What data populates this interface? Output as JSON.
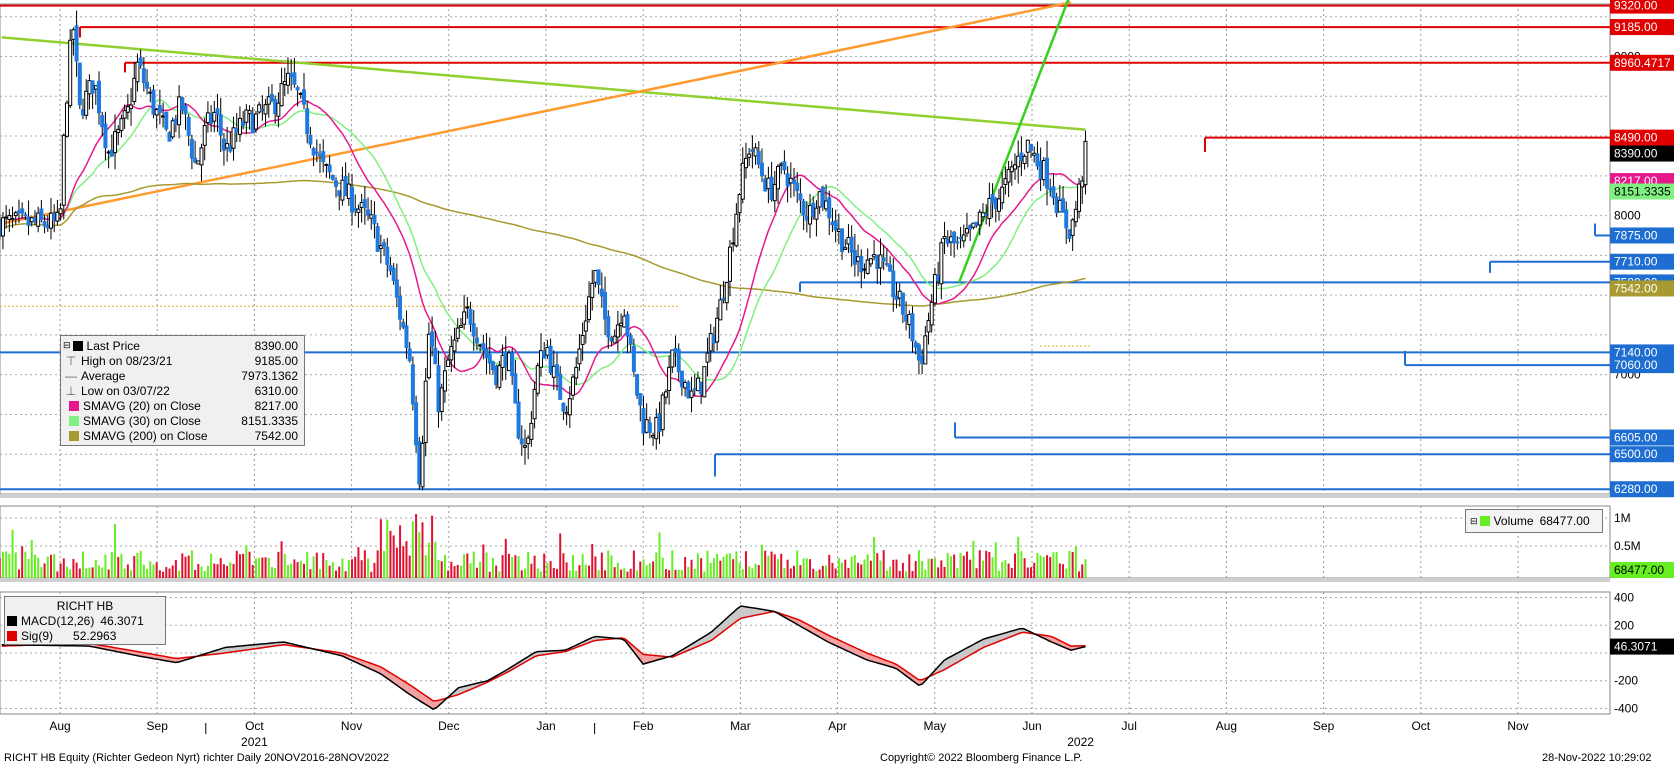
{
  "chart_data": [
    {
      "type": "candlestick",
      "panel": "price",
      "x_months": [
        "Aug",
        "Sep",
        "Oct",
        "Nov",
        "Dec",
        "Jan",
        "Feb",
        "Mar",
        "Apr",
        "May",
        "Jun",
        "Jul",
        "Aug",
        "Sep",
        "Oct",
        "Nov"
      ],
      "x_years": [
        "2021",
        "2022"
      ],
      "y_ticks": [
        7000,
        8000,
        9000
      ],
      "ylim": [
        6250,
        9330
      ],
      "right_labels": [
        {
          "value": 9320.0,
          "text": "9320.00",
          "color": "#e00000"
        },
        {
          "value": 9185.0,
          "text": "9185.00",
          "color": "#e00000"
        },
        {
          "value": 8960.4717,
          "text": "8960.4717",
          "color": "#e00000"
        },
        {
          "value": 8490.0,
          "text": "8490.00",
          "color": "#e00000"
        },
        {
          "value": 8390.0,
          "text": "8390.00",
          "color": "#000000"
        },
        {
          "value": 8217.0,
          "text": "8217.00",
          "color": "#e6198c"
        },
        {
          "value": 8151.3335,
          "text": "8151.3335",
          "color": "#80f080"
        },
        {
          "value": 7875.0,
          "text": "7875.00",
          "color": "#1e6ed2"
        },
        {
          "value": 7710.0,
          "text": "7710.00",
          "color": "#1e6ed2"
        },
        {
          "value": 7580.0,
          "text": "7580.00",
          "color": "#1e6ed2"
        },
        {
          "value": 7542.0,
          "text": "7542.00",
          "color": "#a89a30"
        },
        {
          "value": 7140.0,
          "text": "7140.00",
          "color": "#1e6ed2"
        },
        {
          "value": 7060.0,
          "text": "7060.00",
          "color": "#1e6ed2"
        },
        {
          "value": 6605.0,
          "text": "6605.00",
          "color": "#1e6ed2"
        },
        {
          "value": 6500.0,
          "text": "6500.00",
          "color": "#1e6ed2"
        },
        {
          "value": 6280.0,
          "text": "6280.00",
          "color": "#1e6ed2"
        }
      ],
      "price_path": [
        [
          0,
          7950
        ],
        [
          0.05,
          8600
        ],
        [
          0.1,
          9000
        ],
        [
          0.14,
          9185
        ],
        [
          0.2,
          8650
        ],
        [
          0.35,
          8850
        ],
        [
          0.5,
          8400
        ],
        [
          0.6,
          8500
        ],
        [
          0.7,
          8650
        ],
        [
          0.8,
          8950
        ],
        [
          0.95,
          8700
        ],
        [
          1.1,
          8500
        ],
        [
          1.25,
          8700
        ],
        [
          1.4,
          8300
        ],
        [
          1.5,
          8550
        ],
        [
          1.6,
          8650
        ],
        [
          1.7,
          8400
        ],
        [
          1.8,
          8500
        ],
        [
          1.9,
          8600
        ],
        [
          2.0,
          8600
        ],
        [
          2.2,
          8700
        ],
        [
          2.35,
          8850
        ],
        [
          2.45,
          8750
        ],
        [
          2.55,
          8550
        ],
        [
          2.7,
          8300
        ],
        [
          2.85,
          8200
        ],
        [
          3.0,
          8100
        ],
        [
          3.2,
          7950
        ],
        [
          3.4,
          7650
        ],
        [
          3.6,
          7100
        ],
        [
          3.7,
          6350
        ],
        [
          3.8,
          7300
        ],
        [
          3.9,
          6800
        ],
        [
          4.0,
          7100
        ],
        [
          4.1,
          7250
        ],
        [
          4.2,
          7400
        ],
        [
          4.3,
          7250
        ],
        [
          4.4,
          7100
        ],
        [
          4.5,
          7000
        ],
        [
          4.6,
          7150
        ],
        [
          4.7,
          6700
        ],
        [
          4.8,
          6500
        ],
        [
          4.9,
          7000
        ],
        [
          5.0,
          7200
        ],
        [
          5.1,
          6950
        ],
        [
          5.2,
          6800
        ],
        [
          5.3,
          7000
        ],
        [
          5.4,
          7350
        ],
        [
          5.5,
          7650
        ],
        [
          5.6,
          7350
        ],
        [
          5.7,
          7250
        ],
        [
          5.8,
          7450
        ],
        [
          5.9,
          7000
        ],
        [
          6.0,
          6700
        ],
        [
          6.15,
          6650
        ],
        [
          6.3,
          7100
        ],
        [
          6.4,
          7000
        ],
        [
          6.5,
          6850
        ],
        [
          6.6,
          6950
        ],
        [
          6.7,
          7200
        ],
        [
          6.8,
          7450
        ],
        [
          6.9,
          7800
        ],
        [
          7.0,
          8200
        ],
        [
          7.1,
          8450
        ],
        [
          7.2,
          8300
        ],
        [
          7.3,
          8150
        ],
        [
          7.45,
          8300
        ],
        [
          7.6,
          8100
        ],
        [
          7.7,
          8000
        ],
        [
          7.8,
          8150
        ],
        [
          7.9,
          8050
        ],
        [
          8.0,
          7900
        ],
        [
          8.2,
          7700
        ],
        [
          8.4,
          7750
        ],
        [
          8.6,
          7500
        ],
        [
          8.75,
          7300
        ],
        [
          8.85,
          7060
        ],
        [
          8.95,
          7400
        ],
        [
          9.1,
          7850
        ],
        [
          9.25,
          7800
        ],
        [
          9.4,
          7900
        ],
        [
          9.55,
          8050
        ],
        [
          9.7,
          8150
        ],
        [
          9.85,
          8350
        ],
        [
          9.95,
          8450
        ],
        [
          10.05,
          8350
        ],
        [
          10.2,
          8200
        ],
        [
          10.3,
          8000
        ],
        [
          10.4,
          7900
        ],
        [
          10.47,
          8100
        ],
        [
          10.55,
          8390
        ]
      ],
      "volume_ylabels": [
        "1M",
        "0.5M"
      ],
      "volume_last": {
        "value": 68477.0,
        "text": "68477.00"
      },
      "trend_lines": [
        {
          "name": "green-downtrend",
          "color": "#90d030",
          "from": [
            -0.6,
            9120
          ],
          "to": [
            10.55,
            8540
          ]
        },
        {
          "name": "orange-uptrend",
          "color": "#ff9a2e",
          "from": [
            -0.6,
            7950
          ],
          "to": [
            10.4,
            9340
          ]
        },
        {
          "name": "bright-green-uptrend",
          "color": "#36d020",
          "from": [
            9.25,
            7580
          ],
          "to": [
            10.4,
            9400
          ]
        }
      ]
    },
    {
      "type": "line",
      "panel": "macd",
      "title": "RICHT HB",
      "y_ticks": [
        400,
        200,
        -200,
        -400
      ],
      "ylim": [
        -440,
        440
      ],
      "series": [
        {
          "name": "MACD(12,26)",
          "value": 46.3071,
          "text": "46.3071",
          "color": "#000000",
          "values": [
            [
              -0.6,
              60
            ],
            [
              0.3,
              50
            ],
            [
              0.8,
              -20
            ],
            [
              1.2,
              -70
            ],
            [
              1.7,
              40
            ],
            [
              2.3,
              80
            ],
            [
              2.9,
              -20
            ],
            [
              3.3,
              -150
            ],
            [
              3.6,
              -300
            ],
            [
              3.85,
              -410
            ],
            [
              4.1,
              -250
            ],
            [
              4.4,
              -200
            ],
            [
              4.6,
              -120
            ],
            [
              4.9,
              10
            ],
            [
              5.2,
              20
            ],
            [
              5.5,
              120
            ],
            [
              5.8,
              100
            ],
            [
              6.0,
              -80
            ],
            [
              6.3,
              -20
            ],
            [
              6.7,
              150
            ],
            [
              7.0,
              340
            ],
            [
              7.35,
              300
            ],
            [
              7.6,
              200
            ],
            [
              7.9,
              80
            ],
            [
              8.3,
              -50
            ],
            [
              8.6,
              -110
            ],
            [
              8.85,
              -240
            ],
            [
              9.1,
              -50
            ],
            [
              9.5,
              100
            ],
            [
              9.9,
              180
            ],
            [
              10.2,
              80
            ],
            [
              10.4,
              20
            ],
            [
              10.55,
              46
            ]
          ]
        },
        {
          "name": "Sig(9)",
          "value": 52.2963,
          "text": "52.2963",
          "color": "#e00000",
          "values": [
            [
              -0.6,
              50
            ],
            [
              0.3,
              70
            ],
            [
              0.8,
              10
            ],
            [
              1.2,
              -40
            ],
            [
              1.7,
              0
            ],
            [
              2.3,
              60
            ],
            [
              2.9,
              0
            ],
            [
              3.3,
              -100
            ],
            [
              3.6,
              -230
            ],
            [
              3.85,
              -350
            ],
            [
              4.1,
              -300
            ],
            [
              4.4,
              -210
            ],
            [
              4.6,
              -140
            ],
            [
              4.9,
              -20
            ],
            [
              5.2,
              10
            ],
            [
              5.5,
              90
            ],
            [
              5.8,
              110
            ],
            [
              6.0,
              -10
            ],
            [
              6.3,
              -30
            ],
            [
              6.7,
              90
            ],
            [
              7.0,
              250
            ],
            [
              7.35,
              300
            ],
            [
              7.6,
              240
            ],
            [
              7.9,
              130
            ],
            [
              8.3,
              0
            ],
            [
              8.6,
              -80
            ],
            [
              8.85,
              -200
            ],
            [
              9.1,
              -120
            ],
            [
              9.5,
              40
            ],
            [
              9.9,
              150
            ],
            [
              10.2,
              120
            ],
            [
              10.4,
              50
            ],
            [
              10.55,
              52
            ]
          ]
        }
      ]
    }
  ],
  "legend_price": [
    {
      "label": "Last Price",
      "value": "8390.00",
      "color": "#000000"
    },
    {
      "label": "High on 08/23/21",
      "value": "9185.00",
      "color": "#888888"
    },
    {
      "label": "Average",
      "value": "7973.1362",
      "color": "#888888"
    },
    {
      "label": "Low on 03/07/22",
      "value": "6310.00",
      "color": "#888888"
    },
    {
      "label": "SMAVG (20)  on Close",
      "value": "8217.00",
      "color": "#e6198c"
    },
    {
      "label": "SMAVG (30)  on Close",
      "value": "8151.3335",
      "color": "#80f080"
    },
    {
      "label": "SMAVG (200)  on Close",
      "value": "7542.00",
      "color": "#a89a30"
    }
  ],
  "legend_volume": {
    "label": "Volume",
    "value": "68477.00",
    "color": "#66ee22"
  },
  "legend_macd": {
    "title": "RICHT HB"
  },
  "footer": {
    "left": "RICHT HB Equity (Richter Gedeon Nyrt) richter  Daily 20NOV2016-28NOV2022",
    "center": "Copyright© 2022 Bloomberg Finance L.P.",
    "right": "28-Nov-2022 10:29:02"
  }
}
